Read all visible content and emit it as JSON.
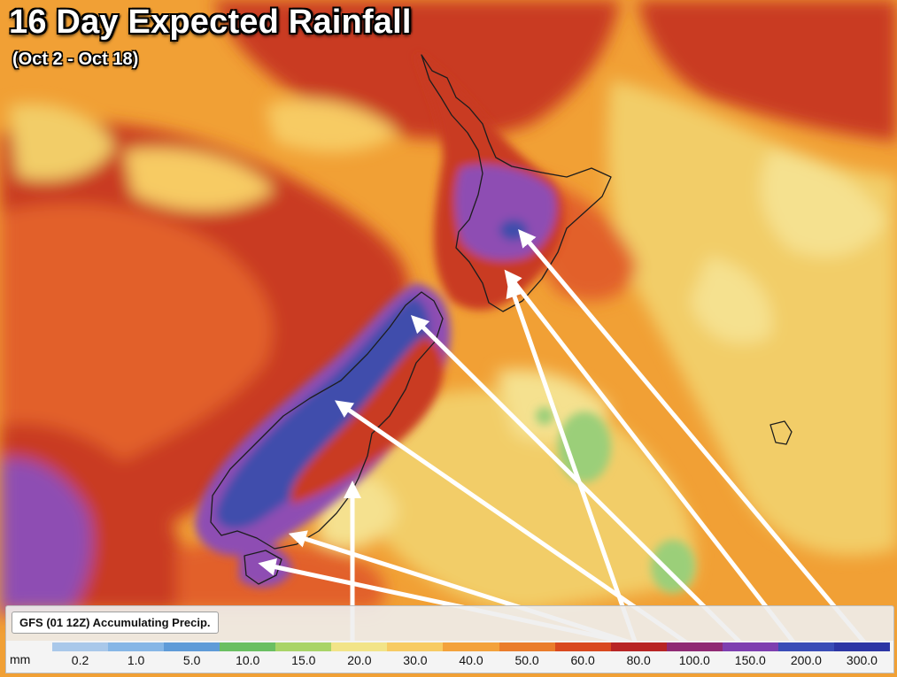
{
  "header": {
    "title": "16 Day Expected Rainfall",
    "subtitle": "(Oct 2 - Oct 18)"
  },
  "legend": {
    "model_label": "GFS (01 12Z) Accumulating Precip.",
    "unit": "mm",
    "ticks": [
      "0.2",
      "1.0",
      "5.0",
      "10.0",
      "15.0",
      "20.0",
      "30.0",
      "40.0",
      "50.0",
      "60.0",
      "80.0",
      "100.0",
      "150.0",
      "200.0",
      "300.0"
    ],
    "colors": [
      "#a9c8ea",
      "#86b6e6",
      "#5f9bd8",
      "#6bbf62",
      "#a9d468",
      "#f2e488",
      "#f7cb63",
      "#f3a23c",
      "#ea7d2c",
      "#d9491f",
      "#b82525",
      "#8f2a74",
      "#7e3fb0",
      "#3a4db7",
      "#2d36a5"
    ]
  },
  "map": {
    "colors": {
      "sea_base": "#f1a035",
      "band_dark": "#c93a24",
      "band_red": "#e2602c",
      "dry_yellow": "#f2cd68",
      "pale_yellow": "#f5e18f",
      "green": "#9bcf79",
      "purple": "#8e4db3",
      "deep_blue": "#3f4dac",
      "arrow": "#ffffff",
      "coast": "#1d1d1d"
    }
  }
}
